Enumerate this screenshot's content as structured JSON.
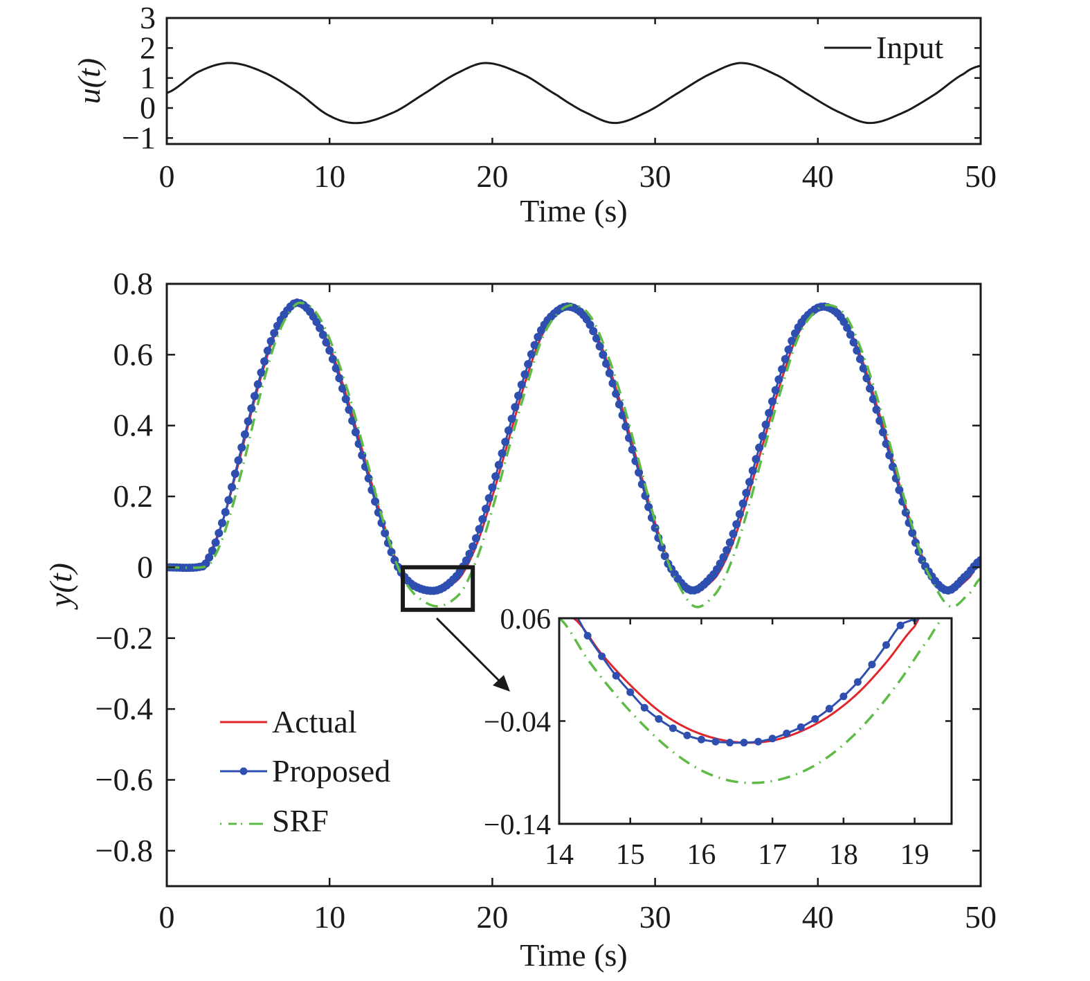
{
  "chart_data": [
    {
      "id": "input-plot",
      "type": "line",
      "title": "",
      "xlabel": "Time (s)",
      "ylabel": "u(t)",
      "xlim": [
        0,
        50
      ],
      "ylim": [
        -1.2,
        3
      ],
      "xticks": [
        0,
        10,
        20,
        30,
        40,
        50
      ],
      "xtick_labels": [
        "0",
        "10",
        "20",
        "30",
        "40",
        "50"
      ],
      "yticks": [
        3,
        2,
        1,
        0,
        -1
      ],
      "ytick_labels": [
        "3",
        "2",
        "1",
        "0",
        "−1"
      ],
      "grid": false,
      "legend": {
        "placement": "top-right",
        "entries": [
          "Input"
        ]
      },
      "series": [
        {
          "name": "Input",
          "color": "#1a1a1a",
          "style": "solid",
          "x": [
            0,
            2,
            3.93,
            6,
            8,
            10,
            11.78,
            14,
            16,
            17.8,
            19.63,
            22,
            24,
            25.5,
            27.49,
            29.5,
            31.5,
            33.4,
            35.34,
            37.5,
            39.5,
            41.3,
            43.2,
            45.3,
            47.2,
            49,
            50
          ],
          "values": [
            0.5,
            1.22,
            1.5,
            1.18,
            0.54,
            -0.26,
            -0.5,
            -0.13,
            0.54,
            1.15,
            1.5,
            1.09,
            0.42,
            -0.09,
            -0.5,
            -0.13,
            0.53,
            1.14,
            1.5,
            1.09,
            0.42,
            -0.14,
            -0.5,
            -0.14,
            0.46,
            1.15,
            1.41
          ]
        }
      ]
    },
    {
      "id": "output-plot",
      "type": "line",
      "title": "",
      "xlabel": "Time (s)",
      "ylabel": "y(t)",
      "xlim": [
        0,
        50
      ],
      "ylim": [
        -0.9,
        0.8
      ],
      "xticks": [
        0,
        10,
        20,
        30,
        40,
        50
      ],
      "xtick_labels": [
        "0",
        "10",
        "20",
        "30",
        "40",
        "50"
      ],
      "yticks": [
        0.8,
        0.6,
        0.4,
        0.2,
        0,
        -0.2,
        -0.4,
        -0.6,
        -0.8
      ],
      "ytick_labels": [
        "0.8",
        "0.6",
        "0.4",
        "0.2",
        "0",
        "−0.2",
        "−0.4",
        "−0.6",
        "−0.8"
      ],
      "grid": false,
      "legend": {
        "placement": "bottom-left",
        "entries": [
          "Actual",
          "Proposed",
          "SRF"
        ]
      },
      "zoom_box": {
        "x_range": [
          14.5,
          18.8
        ],
        "y_range": [
          -0.12,
          0.0
        ]
      },
      "series": [
        {
          "name": "Actual",
          "color": "#e0262b",
          "style": "solid",
          "x": [
            0,
            1.9,
            2.5,
            3.5,
            4.5,
            5.5,
            6.5,
            7.5,
            8.3,
            9.2,
            10.2,
            11.2,
            12.2,
            13.2,
            14.2,
            15.2,
            16.6,
            18.0,
            19.0,
            20.0,
            21.0,
            22.0,
            23.0,
            24.0,
            24.9,
            25.9,
            26.9,
            27.9,
            28.9,
            29.9,
            30.9,
            32.3,
            33.7,
            34.7,
            35.7,
            36.7,
            37.7,
            38.7,
            39.7,
            40.6,
            41.6,
            42.6,
            43.6,
            44.6,
            45.6,
            46.6,
            48.0,
            49.3,
            50
          ],
          "values": [
            0,
            0,
            0.03,
            0.14,
            0.31,
            0.49,
            0.64,
            0.73,
            0.74,
            0.7,
            0.6,
            0.46,
            0.3,
            0.14,
            0.01,
            -0.05,
            -0.065,
            -0.03,
            0.06,
            0.2,
            0.36,
            0.52,
            0.65,
            0.72,
            0.74,
            0.7,
            0.6,
            0.46,
            0.3,
            0.14,
            0.01,
            -0.065,
            -0.03,
            0.06,
            0.2,
            0.36,
            0.52,
            0.65,
            0.72,
            0.74,
            0.7,
            0.6,
            0.46,
            0.3,
            0.14,
            0.01,
            -0.065,
            -0.03,
            0.02
          ]
        },
        {
          "name": "Proposed",
          "color": "#2e4fb0",
          "style": "solid-with-dot-markers",
          "x": [
            0,
            1.9,
            2.5,
            3.5,
            4.5,
            5.5,
            6.5,
            7.5,
            8.2,
            9.1,
            10.1,
            11.1,
            12.1,
            13.1,
            14.1,
            15.1,
            16.6,
            17.9,
            18.9,
            19.9,
            20.9,
            21.9,
            22.9,
            23.9,
            24.8,
            25.8,
            26.8,
            27.8,
            28.8,
            29.8,
            30.8,
            32.2,
            33.6,
            34.6,
            35.6,
            36.6,
            37.6,
            38.6,
            39.6,
            40.5,
            41.5,
            42.5,
            43.5,
            44.5,
            45.5,
            46.5,
            47.9,
            49.2,
            50
          ],
          "values": [
            0,
            0,
            0.02,
            0.14,
            0.32,
            0.5,
            0.65,
            0.73,
            0.745,
            0.7,
            0.6,
            0.46,
            0.3,
            0.14,
            0.01,
            -0.05,
            -0.065,
            -0.02,
            0.07,
            0.21,
            0.37,
            0.53,
            0.66,
            0.72,
            0.735,
            0.7,
            0.6,
            0.46,
            0.3,
            0.14,
            0.01,
            -0.065,
            -0.02,
            0.07,
            0.21,
            0.37,
            0.53,
            0.66,
            0.72,
            0.735,
            0.7,
            0.6,
            0.46,
            0.3,
            0.14,
            0.01,
            -0.065,
            -0.02,
            0.02
          ]
        },
        {
          "name": "SRF",
          "color": "#5dbb46",
          "style": "dash-dot",
          "x": [
            0,
            2.2,
            2.8,
            3.7,
            4.7,
            5.7,
            6.7,
            7.7,
            8.4,
            9.3,
            10.3,
            11.3,
            12.3,
            13.3,
            14.3,
            15.3,
            16.7,
            18.1,
            19.1,
            20.1,
            21.1,
            22.1,
            23.1,
            24.1,
            25.0,
            26.0,
            27.0,
            28.0,
            29.0,
            30.0,
            31.0,
            32.4,
            33.8,
            34.8,
            35.8,
            36.8,
            37.8,
            38.8,
            39.8,
            40.7,
            41.7,
            42.7,
            43.7,
            44.7,
            45.7,
            46.7,
            48.1,
            49.4,
            50
          ],
          "values": [
            0,
            0,
            0.02,
            0.12,
            0.29,
            0.48,
            0.64,
            0.73,
            0.745,
            0.71,
            0.61,
            0.47,
            0.3,
            0.13,
            -0.01,
            -0.08,
            -0.11,
            -0.07,
            0.03,
            0.18,
            0.35,
            0.51,
            0.65,
            0.72,
            0.74,
            0.71,
            0.61,
            0.47,
            0.3,
            0.13,
            -0.01,
            -0.11,
            -0.07,
            0.03,
            0.18,
            0.35,
            0.51,
            0.65,
            0.72,
            0.74,
            0.71,
            0.61,
            0.47,
            0.3,
            0.13,
            -0.01,
            -0.11,
            -0.07,
            -0.03
          ]
        }
      ]
    },
    {
      "id": "inset-plot",
      "type": "line",
      "title": "",
      "xlabel": "",
      "ylabel": "",
      "xlim": [
        14,
        19.52
      ],
      "ylim": [
        -0.14,
        0.06
      ],
      "xticks": [
        14,
        15,
        16,
        17,
        18,
        19
      ],
      "xtick_labels": [
        "14",
        "15",
        "16",
        "17",
        "18",
        "19"
      ],
      "yticks": [
        0.06,
        -0.04,
        -0.14
      ],
      "ytick_labels": [
        "0.06",
        "−0.04",
        "−0.14"
      ],
      "grid": false,
      "series": [
        {
          "name": "Actual",
          "color": "#e0262b",
          "style": "solid",
          "x": [
            14.2,
            14.6,
            15.0,
            15.4,
            15.8,
            16.2,
            16.6,
            17.0,
            17.4,
            17.8,
            18.2,
            18.6,
            19.0,
            19.2
          ],
          "values": [
            0.06,
            0.025,
            -0.005,
            -0.03,
            -0.047,
            -0.057,
            -0.061,
            -0.059,
            -0.05,
            -0.035,
            -0.013,
            0.017,
            0.052,
            0.072
          ]
        },
        {
          "name": "Proposed",
          "color": "#2e4fb0",
          "style": "solid-with-dot-markers",
          "x": [
            14.2,
            14.4,
            14.6,
            14.8,
            15.0,
            15.2,
            15.4,
            15.6,
            15.8,
            16.0,
            16.2,
            16.4,
            16.6,
            16.8,
            17.0,
            17.2,
            17.4,
            17.6,
            17.8,
            18.0,
            18.2,
            18.4,
            18.6,
            18.8,
            19.0,
            19.2
          ],
          "values": [
            0.065,
            0.043,
            0.023,
            0.004,
            -0.012,
            -0.027,
            -0.038,
            -0.047,
            -0.054,
            -0.058,
            -0.06,
            -0.061,
            -0.061,
            -0.06,
            -0.057,
            -0.052,
            -0.046,
            -0.038,
            -0.028,
            -0.016,
            -0.002,
            0.015,
            0.034,
            0.053,
            0.06,
            0.075
          ]
        },
        {
          "name": "SRF",
          "color": "#5dbb46",
          "style": "dash-dot",
          "x": [
            14.0,
            14.4,
            14.8,
            15.2,
            15.6,
            16.0,
            16.4,
            16.8,
            17.2,
            17.6,
            18.0,
            18.4,
            18.8,
            19.2,
            19.5
          ],
          "values": [
            0.06,
            0.02,
            -0.015,
            -0.045,
            -0.07,
            -0.088,
            -0.098,
            -0.1,
            -0.095,
            -0.083,
            -0.063,
            -0.035,
            0.0,
            0.04,
            0.068
          ]
        }
      ]
    }
  ],
  "labels": {
    "top_ylabel_u": "u",
    "top_ylabel_t": "(t)",
    "main_ylabel_y": "y",
    "main_ylabel_t": "(t)",
    "xlabel": "Time (s)",
    "legend_input": "Input",
    "legend_actual": "Actual",
    "legend_proposed": "Proposed",
    "legend_srf": "SRF"
  }
}
